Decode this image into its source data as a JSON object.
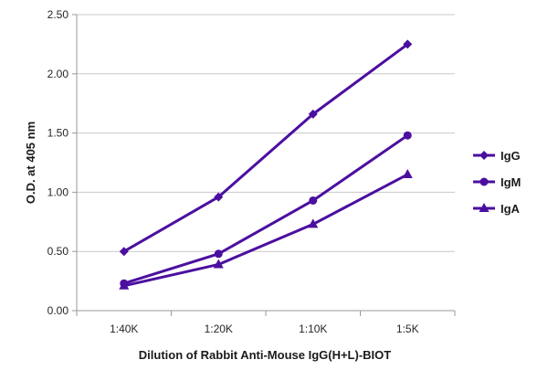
{
  "chart_data": {
    "type": "line",
    "title": "",
    "xlabel": "Dilution of Rabbit Anti-Mouse IgG(H+L)-BIOT",
    "ylabel": "O.D. at 405 nm",
    "categories": [
      "1:40K",
      "1:20K",
      "1:10K",
      "1:5K"
    ],
    "ylim": [
      0,
      2.5
    ],
    "yticks": [
      "0.00",
      "0.50",
      "1.00",
      "1.50",
      "2.00",
      "2.50"
    ],
    "grid": true,
    "legend_position": "right",
    "series_color": "#4b0fa0",
    "series": [
      {
        "name": "IgG",
        "marker": "diamond",
        "values": [
          0.5,
          0.96,
          1.66,
          2.25
        ]
      },
      {
        "name": "IgM",
        "marker": "circle",
        "values": [
          0.23,
          0.48,
          0.93,
          1.48
        ]
      },
      {
        "name": "IgA",
        "marker": "triangle",
        "values": [
          0.21,
          0.39,
          0.73,
          1.15
        ]
      }
    ]
  }
}
